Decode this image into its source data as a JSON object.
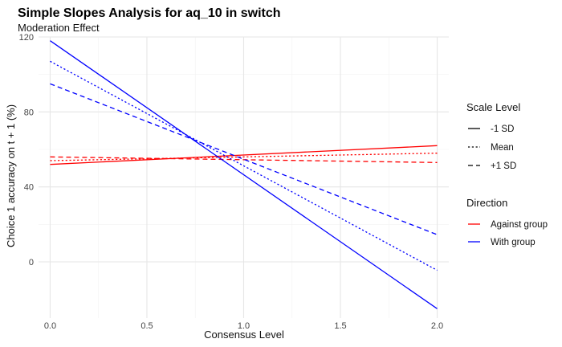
{
  "chart_data": {
    "type": "line",
    "title": "Simple Slopes Analysis for aq_10 in switch",
    "subtitle": "Moderation Effect",
    "xlabel": "Consensus Level",
    "ylabel": "Choice 1 accuracy on t + 1 (%)",
    "xlim": [
      -0.06,
      2.06
    ],
    "ylim": [
      -30,
      120
    ],
    "x_ticks": [
      0.0,
      0.5,
      1.0,
      1.5,
      2.0
    ],
    "x_tick_labels": [
      "0.0",
      "0.5",
      "1.0",
      "1.5",
      "2.0"
    ],
    "y_ticks": [
      0,
      40,
      80,
      120
    ],
    "y_tick_labels": [
      "0",
      "40",
      "80",
      "120"
    ],
    "grid": true,
    "legend_placement": "right",
    "legends": [
      {
        "title": "Scale Level",
        "items": [
          {
            "label": "-1 SD",
            "linetype": "solid"
          },
          {
            "label": "Mean",
            "linetype": "dotted"
          },
          {
            "label": "+1 SD",
            "linetype": "dashed"
          }
        ]
      },
      {
        "title": "Direction",
        "items": [
          {
            "label": "Against group",
            "color": "#ff0000"
          },
          {
            "label": "With group",
            "color": "#0000ff"
          }
        ]
      }
    ],
    "series": [
      {
        "direction": "Against group",
        "scale": "-1 SD",
        "color": "#ff0000",
        "linetype": "solid",
        "x": [
          0,
          2
        ],
        "y": [
          52,
          62
        ]
      },
      {
        "direction": "Against group",
        "scale": "Mean",
        "color": "#ff0000",
        "linetype": "dotted",
        "x": [
          0,
          2
        ],
        "y": [
          54,
          58
        ]
      },
      {
        "direction": "Against group",
        "scale": "+1 SD",
        "color": "#ff0000",
        "linetype": "dashed",
        "x": [
          0,
          2
        ],
        "y": [
          56,
          53
        ]
      },
      {
        "direction": "With group",
        "scale": "-1 SD",
        "color": "#0000ff",
        "linetype": "solid",
        "x": [
          0,
          2
        ],
        "y": [
          118,
          -25
        ]
      },
      {
        "direction": "With group",
        "scale": "Mean",
        "color": "#0000ff",
        "linetype": "dotted",
        "x": [
          0,
          2
        ],
        "y": [
          107,
          -4.5
        ]
      },
      {
        "direction": "With group",
        "scale": "+1 SD",
        "color": "#0000ff",
        "linetype": "dashed",
        "x": [
          0,
          2
        ],
        "y": [
          95,
          14.5
        ]
      }
    ]
  }
}
